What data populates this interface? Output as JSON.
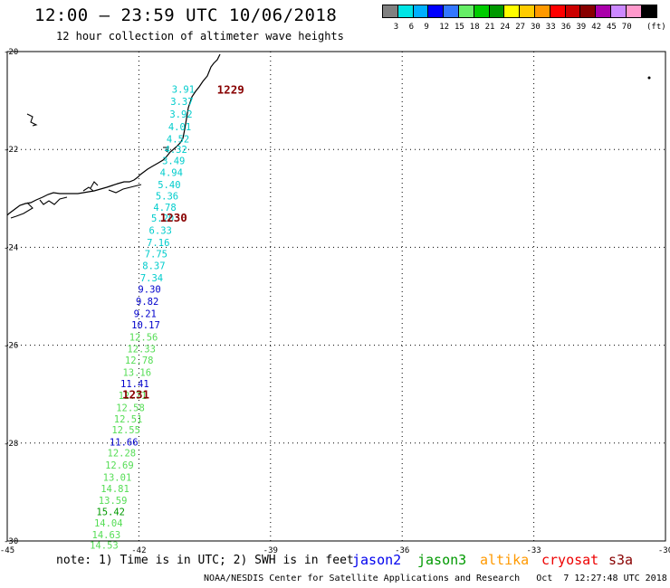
{
  "header": {
    "title": "12:00 — 23:59 UTC 10/06/2018",
    "subtitle": "12 hour collection of altimeter wave heights"
  },
  "legend": {
    "unit": "(ft)",
    "items": [
      {
        "label": "",
        "color": "#808080"
      },
      {
        "label": "3",
        "color": "#00e5e5"
      },
      {
        "label": "6",
        "color": "#00b0ff"
      },
      {
        "label": "9",
        "color": "#0000ff"
      },
      {
        "label": "12",
        "color": "#3377ff"
      },
      {
        "label": "15",
        "color": "#66ee66"
      },
      {
        "label": "18",
        "color": "#00cc00"
      },
      {
        "label": "21",
        "color": "#009900"
      },
      {
        "label": "24",
        "color": "#ffff00"
      },
      {
        "label": "27",
        "color": "#ffcc00"
      },
      {
        "label": "30",
        "color": "#ff9900"
      },
      {
        "label": "33",
        "color": "#ff0000"
      },
      {
        "label": "36",
        "color": "#cc0000"
      },
      {
        "label": "39",
        "color": "#880000"
      },
      {
        "label": "42",
        "color": "#aa00aa"
      },
      {
        "label": "45",
        "color": "#cc88ff"
      },
      {
        "label": "70",
        "color": "#ff99cc"
      },
      {
        "label": "",
        "color": "#000000"
      }
    ]
  },
  "map": {
    "lon_range": [
      -45,
      -30
    ],
    "lat_range": [
      -30,
      -20
    ],
    "lon_ticks": [
      "-45",
      "-42",
      "-39",
      "-36",
      "-33",
      "-30"
    ],
    "lat_ticks": [
      "-20",
      "-22",
      "-24",
      "-26",
      "-28",
      "-30"
    ],
    "time_labels": [
      {
        "text": "1229",
        "lon": -40.22,
        "lat": -20.77
      },
      {
        "text": "1230",
        "lon": -41.52,
        "lat": -23.38
      },
      {
        "text": "1231",
        "lon": -42.38,
        "lat": -27.0
      }
    ],
    "colors": {
      "cyan": "#00cccc",
      "blue": "#0000cc",
      "light_green": "#55dd55",
      "green": "#009900",
      "time_label": "#880000"
    },
    "observations": [
      {
        "v": "3.91",
        "lon": -41.25,
        "lat": -20.77,
        "c": "cyan"
      },
      {
        "v": "3.37",
        "lon": -41.28,
        "lat": -21.02,
        "c": "cyan"
      },
      {
        "v": "3.92",
        "lon": -41.3,
        "lat": -21.28,
        "c": "cyan"
      },
      {
        "v": "4.01",
        "lon": -41.33,
        "lat": -21.53,
        "c": "cyan"
      },
      {
        "v": "4.52",
        "lon": -41.37,
        "lat": -21.78,
        "c": "cyan"
      },
      {
        "v": "4.32",
        "lon": -41.42,
        "lat": -22.0,
        "c": "cyan"
      },
      {
        "v": "3.49",
        "lon": -41.47,
        "lat": -22.23,
        "c": "cyan"
      },
      {
        "v": "4.94",
        "lon": -41.52,
        "lat": -22.47,
        "c": "cyan"
      },
      {
        "v": "5.40",
        "lon": -41.57,
        "lat": -22.72,
        "c": "cyan"
      },
      {
        "v": "5.36",
        "lon": -41.62,
        "lat": -22.95,
        "c": "cyan"
      },
      {
        "v": "4.78",
        "lon": -41.67,
        "lat": -23.18,
        "c": "cyan"
      },
      {
        "v": "5.20",
        "lon": -41.72,
        "lat": -23.4,
        "c": "cyan"
      },
      {
        "v": "6.33",
        "lon": -41.77,
        "lat": -23.65,
        "c": "cyan"
      },
      {
        "v": "7.16",
        "lon": -41.82,
        "lat": -23.9,
        "c": "cyan"
      },
      {
        "v": "7.75",
        "lon": -41.87,
        "lat": -24.13,
        "c": "cyan"
      },
      {
        "v": "8.37",
        "lon": -41.92,
        "lat": -24.37,
        "c": "cyan"
      },
      {
        "v": "7.34",
        "lon": -41.97,
        "lat": -24.62,
        "c": "cyan"
      },
      {
        "v": "9.30",
        "lon": -42.02,
        "lat": -24.85,
        "c": "blue"
      },
      {
        "v": "9.82",
        "lon": -42.07,
        "lat": -25.1,
        "c": "blue"
      },
      {
        "v": "9.21",
        "lon": -42.12,
        "lat": -25.35,
        "c": "blue"
      },
      {
        "v": "10.17",
        "lon": -42.17,
        "lat": -25.58,
        "c": "blue"
      },
      {
        "v": "12.56",
        "lon": -42.22,
        "lat": -25.83,
        "c": "light_green"
      },
      {
        "v": "12.33",
        "lon": -42.27,
        "lat": -26.07,
        "c": "light_green"
      },
      {
        "v": "12.78",
        "lon": -42.32,
        "lat": -26.3,
        "c": "light_green"
      },
      {
        "v": "13.16",
        "lon": -42.37,
        "lat": -26.55,
        "c": "light_green"
      },
      {
        "v": "11.41",
        "lon": -42.42,
        "lat": -26.78,
        "c": "blue"
      },
      {
        "v": "12.71",
        "lon": -42.47,
        "lat": -27.02,
        "c": "light_green"
      },
      {
        "v": "12.58",
        "lon": -42.52,
        "lat": -27.27,
        "c": "light_green"
      },
      {
        "v": "12.51",
        "lon": -42.57,
        "lat": -27.5,
        "c": "light_green"
      },
      {
        "v": "12.55",
        "lon": -42.62,
        "lat": -27.73,
        "c": "light_green"
      },
      {
        "v": "11.66",
        "lon": -42.67,
        "lat": -27.98,
        "c": "blue"
      },
      {
        "v": "12.28",
        "lon": -42.72,
        "lat": -28.2,
        "c": "light_green"
      },
      {
        "v": "12.69",
        "lon": -42.77,
        "lat": -28.45,
        "c": "light_green"
      },
      {
        "v": "13.01",
        "lon": -42.82,
        "lat": -28.7,
        "c": "light_green"
      },
      {
        "v": "14.81",
        "lon": -42.87,
        "lat": -28.93,
        "c": "light_green"
      },
      {
        "v": "13.59",
        "lon": -42.92,
        "lat": -29.17,
        "c": "light_green"
      },
      {
        "v": "15.42",
        "lon": -42.97,
        "lat": -29.4,
        "c": "green"
      },
      {
        "v": "14.04",
        "lon": -43.02,
        "lat": -29.63,
        "c": "light_green"
      },
      {
        "v": "14.63",
        "lon": -43.07,
        "lat": -29.87,
        "c": "light_green"
      },
      {
        "v": "14.53",
        "lon": -43.12,
        "lat": -30.08,
        "c": "light_green"
      }
    ]
  },
  "footer": {
    "note": "note: 1) Time is in UTC; 2) SWH is in feet",
    "satellites": [
      {
        "name": "jason2",
        "color": "#0000ee"
      },
      {
        "name": "jason3",
        "color": "#009900"
      },
      {
        "name": "altika",
        "color": "#ff9900"
      },
      {
        "name": "cryosat",
        "color": "#ee0000"
      },
      {
        "name": "s3a",
        "color": "#880000"
      }
    ],
    "credit": "NOAA/NESDIS Center for Satellite Applications and Research   Oct  7 12:27:48 UTC 2018"
  }
}
